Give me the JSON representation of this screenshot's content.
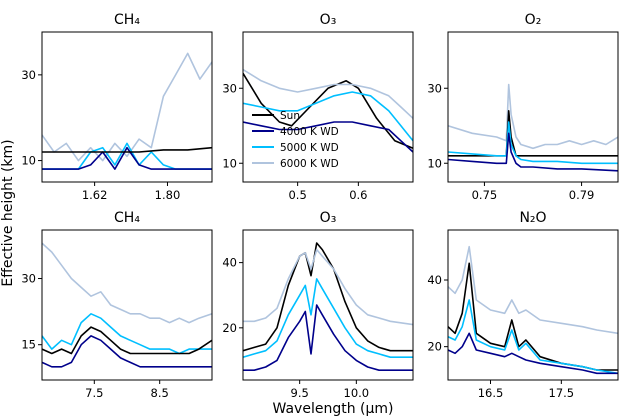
{
  "figure": {
    "ylabel": "Effective height (km)",
    "xlabel": "Wavelength (μm)"
  },
  "legend": [
    {
      "label": "Sun",
      "color": "#000000"
    },
    {
      "label": "4000 K WD",
      "color": "#00008b"
    },
    {
      "label": "5000 K WD",
      "color": "#00bfff"
    },
    {
      "label": "6000 K WD",
      "color": "#b0c4de"
    }
  ],
  "chart_data": [
    {
      "type": "line",
      "title": "CH₄",
      "xlim": [
        1.49,
        1.91
      ],
      "ylim": [
        5,
        40
      ],
      "xticks": [
        {
          "v": 1.62,
          "label": "1.62"
        },
        {
          "v": 1.8,
          "label": "1.80"
        }
      ],
      "yticks": [
        {
          "v": 10,
          "label": "10"
        },
        {
          "v": 30,
          "label": "30"
        }
      ],
      "series": [
        {
          "name": "6000 K WD",
          "x": [
            1.49,
            1.52,
            1.55,
            1.58,
            1.61,
            1.64,
            1.67,
            1.7,
            1.73,
            1.76,
            1.79,
            1.82,
            1.85,
            1.88,
            1.91
          ],
          "y": [
            16,
            12,
            14,
            10,
            13,
            10,
            14,
            11,
            15,
            13,
            25,
            30,
            35,
            29,
            33
          ]
        },
        {
          "name": "5000 K WD",
          "x": [
            1.49,
            1.52,
            1.55,
            1.58,
            1.61,
            1.64,
            1.67,
            1.7,
            1.73,
            1.76,
            1.79,
            1.82,
            1.85,
            1.88,
            1.91
          ],
          "y": [
            8,
            8,
            8,
            8,
            12,
            13,
            9,
            14,
            9,
            12,
            9,
            8,
            8,
            8,
            8
          ]
        },
        {
          "name": "4000 K WD",
          "x": [
            1.49,
            1.52,
            1.55,
            1.58,
            1.61,
            1.64,
            1.67,
            1.7,
            1.73,
            1.76,
            1.79,
            1.82,
            1.85,
            1.88,
            1.91
          ],
          "y": [
            8,
            8,
            8,
            8,
            9,
            12,
            8,
            13,
            9,
            8,
            8,
            8,
            8,
            8,
            8
          ]
        },
        {
          "name": "Sun",
          "x": [
            1.49,
            1.55,
            1.61,
            1.67,
            1.73,
            1.79,
            1.85,
            1.91
          ],
          "y": [
            12,
            12,
            12,
            12,
            12,
            12.5,
            12.5,
            13
          ]
        }
      ]
    },
    {
      "type": "line",
      "title": "O₃",
      "xlim": [
        0.41,
        0.69
      ],
      "ylim": [
        5,
        45
      ],
      "xticks": [
        {
          "v": 0.5,
          "label": "0.5"
        },
        {
          "v": 0.6,
          "label": "0.6"
        }
      ],
      "yticks": [
        {
          "v": 10,
          "label": "10"
        },
        {
          "v": 30,
          "label": "30"
        }
      ],
      "series": [
        {
          "name": "Sun",
          "x": [
            0.41,
            0.44,
            0.47,
            0.49,
            0.52,
            0.55,
            0.58,
            0.6,
            0.63,
            0.66,
            0.69
          ],
          "y": [
            34,
            26,
            21,
            20,
            25,
            30,
            32,
            30,
            22,
            16,
            14
          ]
        },
        {
          "name": "4000 K WD",
          "x": [
            0.41,
            0.44,
            0.47,
            0.5,
            0.53,
            0.56,
            0.59,
            0.62,
            0.65,
            0.67,
            0.69
          ],
          "y": [
            21,
            20,
            19,
            19,
            20,
            21,
            21,
            20,
            19,
            16,
            13
          ]
        },
        {
          "name": "5000 K WD",
          "x": [
            0.41,
            0.44,
            0.47,
            0.5,
            0.53,
            0.56,
            0.59,
            0.62,
            0.65,
            0.67,
            0.69
          ],
          "y": [
            26,
            25,
            24,
            24,
            26,
            28,
            29,
            28,
            24,
            20,
            16
          ]
        },
        {
          "name": "6000 K WD",
          "x": [
            0.41,
            0.44,
            0.47,
            0.5,
            0.53,
            0.56,
            0.59,
            0.62,
            0.65,
            0.67,
            0.69
          ],
          "y": [
            35,
            32,
            30,
            29,
            30,
            31,
            31,
            30,
            28,
            25,
            22
          ]
        }
      ]
    },
    {
      "type": "line",
      "title": "O₂",
      "xlim": [
        0.735,
        0.805
      ],
      "ylim": [
        5,
        45
      ],
      "xticks": [
        {
          "v": 0.75,
          "label": "0.75"
        },
        {
          "v": 0.79,
          "label": "0.79"
        }
      ],
      "yticks": [
        {
          "v": 10,
          "label": "10"
        },
        {
          "v": 30,
          "label": "30"
        }
      ],
      "series": [
        {
          "name": "6000 K WD",
          "x": [
            0.735,
            0.745,
            0.755,
            0.759,
            0.76,
            0.761,
            0.763,
            0.765,
            0.77,
            0.775,
            0.78,
            0.785,
            0.79,
            0.795,
            0.8,
            0.805
          ],
          "y": [
            20,
            18,
            17,
            16,
            31,
            23,
            17,
            15,
            14,
            15,
            15,
            16,
            15,
            16,
            15,
            17
          ]
        },
        {
          "name": "Sun",
          "x": [
            0.735,
            0.745,
            0.755,
            0.759,
            0.76,
            0.761,
            0.763,
            0.765,
            0.77,
            0.78,
            0.79,
            0.805
          ],
          "y": [
            12,
            12,
            12,
            12,
            24,
            17,
            12,
            12,
            12,
            12,
            12,
            12
          ]
        },
        {
          "name": "5000 K WD",
          "x": [
            0.735,
            0.745,
            0.755,
            0.759,
            0.76,
            0.761,
            0.763,
            0.765,
            0.77,
            0.78,
            0.79,
            0.805
          ],
          "y": [
            13,
            12.5,
            12,
            12,
            21,
            15,
            12,
            11,
            10.5,
            10.5,
            10,
            10
          ]
        },
        {
          "name": "4000 K WD",
          "x": [
            0.735,
            0.745,
            0.755,
            0.759,
            0.76,
            0.761,
            0.763,
            0.765,
            0.77,
            0.78,
            0.79,
            0.805
          ],
          "y": [
            11,
            10.5,
            10,
            10,
            18,
            13,
            10,
            9,
            9,
            8.5,
            8.5,
            8
          ]
        }
      ]
    },
    {
      "type": "line",
      "title": "CH₄",
      "xlim": [
        6.7,
        9.3
      ],
      "ylim": [
        7,
        41
      ],
      "xticks": [
        {
          "v": 7.5,
          "label": "7.5"
        },
        {
          "v": 8.5,
          "label": "8.5"
        }
      ],
      "yticks": [
        {
          "v": 15,
          "label": "15"
        },
        {
          "v": 30,
          "label": "30"
        }
      ],
      "series": [
        {
          "name": "6000 K WD",
          "x": [
            6.7,
            6.85,
            7.0,
            7.15,
            7.3,
            7.45,
            7.6,
            7.75,
            7.9,
            8.05,
            8.2,
            8.35,
            8.5,
            8.65,
            8.8,
            8.95,
            9.1,
            9.3
          ],
          "y": [
            38,
            36,
            33,
            30,
            28,
            26,
            27,
            24,
            23,
            22,
            22,
            21,
            21,
            20,
            21,
            20,
            21,
            22
          ]
        },
        {
          "name": "5000 K WD",
          "x": [
            6.7,
            6.85,
            7.0,
            7.15,
            7.3,
            7.45,
            7.6,
            7.75,
            7.9,
            8.05,
            8.2,
            8.35,
            8.5,
            8.65,
            8.8,
            8.95,
            9.1,
            9.3
          ],
          "y": [
            17,
            14,
            16,
            15,
            20,
            22,
            21,
            19,
            17,
            16,
            15,
            14,
            14,
            14,
            13,
            14,
            14,
            14
          ]
        },
        {
          "name": "Sun",
          "x": [
            6.7,
            6.85,
            7.0,
            7.15,
            7.3,
            7.45,
            7.6,
            7.75,
            7.9,
            8.05,
            8.2,
            8.35,
            8.5,
            8.65,
            8.8,
            8.95,
            9.1,
            9.3
          ],
          "y": [
            14,
            13,
            14,
            13,
            17,
            19,
            18,
            16,
            14,
            13,
            13,
            13,
            13,
            13,
            13,
            13,
            14,
            16
          ]
        },
        {
          "name": "4000 K WD",
          "x": [
            6.7,
            6.85,
            7.0,
            7.15,
            7.3,
            7.45,
            7.6,
            7.75,
            7.9,
            8.05,
            8.2,
            8.35,
            8.5,
            8.65,
            8.8,
            8.95,
            9.1,
            9.3
          ],
          "y": [
            11,
            10,
            10,
            11,
            15,
            17,
            16,
            14,
            12,
            11,
            10,
            10,
            10,
            10,
            10,
            10,
            10,
            10
          ]
        }
      ]
    },
    {
      "type": "line",
      "title": "O₃",
      "xlim": [
        9.0,
        10.5
      ],
      "ylim": [
        4,
        50
      ],
      "xticks": [
        {
          "v": 9.5,
          "label": "9.5"
        },
        {
          "v": 10.0,
          "label": "10.0"
        }
      ],
      "yticks": [
        {
          "v": 20,
          "label": "20"
        },
        {
          "v": 40,
          "label": "40"
        }
      ],
      "series": [
        {
          "name": "Sun",
          "x": [
            9.0,
            9.1,
            9.2,
            9.3,
            9.4,
            9.5,
            9.55,
            9.6,
            9.65,
            9.7,
            9.8,
            9.9,
            10.0,
            10.1,
            10.2,
            10.3,
            10.5
          ],
          "y": [
            13,
            14,
            15,
            20,
            33,
            42,
            43,
            36,
            46,
            44,
            38,
            28,
            20,
            16,
            14,
            13,
            13
          ]
        },
        {
          "name": "6000 K WD",
          "x": [
            9.0,
            9.1,
            9.2,
            9.3,
            9.4,
            9.5,
            9.55,
            9.6,
            9.65,
            9.7,
            9.8,
            9.9,
            10.0,
            10.1,
            10.2,
            10.3,
            10.5
          ],
          "y": [
            22,
            22,
            23,
            26,
            35,
            42,
            43,
            38,
            44,
            42,
            38,
            32,
            27,
            24,
            23,
            22,
            21
          ]
        },
        {
          "name": "5000 K WD",
          "x": [
            9.0,
            9.1,
            9.2,
            9.3,
            9.4,
            9.5,
            9.55,
            9.6,
            9.65,
            9.7,
            9.8,
            9.9,
            10.0,
            10.1,
            10.2,
            10.3,
            10.5
          ],
          "y": [
            11,
            12,
            13,
            16,
            24,
            30,
            33,
            24,
            35,
            32,
            26,
            20,
            15,
            13,
            12,
            11,
            11
          ]
        },
        {
          "name": "4000 K WD",
          "x": [
            9.0,
            9.1,
            9.2,
            9.3,
            9.4,
            9.5,
            9.55,
            9.6,
            9.65,
            9.7,
            9.8,
            9.9,
            10.0,
            10.1,
            10.2,
            10.3,
            10.5
          ],
          "y": [
            7,
            7,
            8,
            10,
            17,
            22,
            25,
            12,
            27,
            24,
            18,
            13,
            10,
            8,
            7,
            7,
            7
          ]
        }
      ]
    },
    {
      "type": "line",
      "title": "N₂O",
      "xlim": [
        15.9,
        18.3
      ],
      "ylim": [
        10,
        55
      ],
      "xticks": [
        {
          "v": 16.5,
          "label": "16.5"
        },
        {
          "v": 17.5,
          "label": "17.5"
        }
      ],
      "yticks": [
        {
          "v": 20,
          "label": "20"
        },
        {
          "v": 40,
          "label": "40"
        }
      ],
      "series": [
        {
          "name": "6000 K WD",
          "x": [
            15.9,
            16.0,
            16.1,
            16.2,
            16.3,
            16.5,
            16.7,
            16.8,
            16.9,
            17.0,
            17.2,
            17.5,
            17.8,
            18.0,
            18.3
          ],
          "y": [
            38,
            36,
            40,
            50,
            34,
            31,
            30,
            34,
            30,
            31,
            28,
            27,
            26,
            25,
            24
          ]
        },
        {
          "name": "Sun",
          "x": [
            15.9,
            16.0,
            16.1,
            16.2,
            16.3,
            16.5,
            16.7,
            16.8,
            16.9,
            17.0,
            17.2,
            17.5,
            17.8,
            18.0,
            18.3
          ],
          "y": [
            26,
            24,
            30,
            45,
            24,
            21,
            20,
            28,
            20,
            22,
            17,
            15,
            14,
            13,
            13
          ]
        },
        {
          "name": "5000 K WD",
          "x": [
            15.9,
            16.0,
            16.1,
            16.2,
            16.3,
            16.5,
            16.7,
            16.8,
            16.9,
            17.0,
            17.2,
            17.5,
            17.8,
            18.0,
            18.3
          ],
          "y": [
            23,
            22,
            26,
            34,
            22,
            20,
            19,
            25,
            19,
            21,
            16,
            15,
            14,
            13,
            12
          ]
        },
        {
          "name": "4000 K WD",
          "x": [
            15.9,
            16.0,
            16.1,
            16.2,
            16.3,
            16.5,
            16.7,
            16.8,
            16.9,
            17.0,
            17.2,
            17.5,
            17.8,
            18.0,
            18.3
          ],
          "y": [
            19,
            18,
            20,
            24,
            19,
            18,
            17,
            18,
            17,
            16,
            15,
            14,
            13,
            12,
            12
          ]
        }
      ]
    }
  ]
}
